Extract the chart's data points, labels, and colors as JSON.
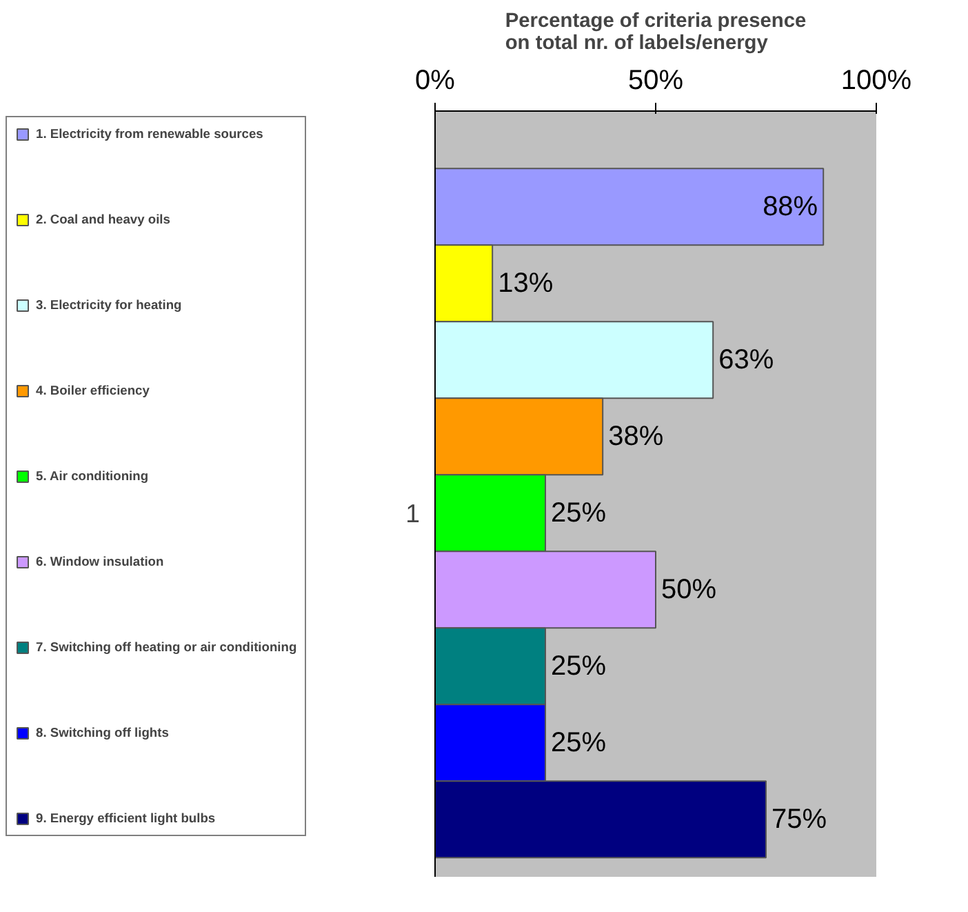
{
  "chart_data": {
    "type": "bar",
    "orientation": "horizontal",
    "title": "Percentage of criteria presence\non total nr. of labels/energy",
    "categories": [
      "1"
    ],
    "series": [
      {
        "name": "1. Electricity from renewable sources",
        "color": "#9999ff",
        "values": [
          88
        ],
        "value_labels": [
          "88%"
        ]
      },
      {
        "name": "2. Coal and heavy oils",
        "color": "#ffff00",
        "values": [
          13
        ],
        "value_labels": [
          "13%"
        ]
      },
      {
        "name": "3. Electricity for heating",
        "color": "#ccffff",
        "values": [
          63
        ],
        "value_labels": [
          "63%"
        ]
      },
      {
        "name": "4. Boiler efficiency",
        "color": "#ff9900",
        "values": [
          38
        ],
        "value_labels": [
          "38%"
        ]
      },
      {
        "name": "5. Air conditioning",
        "color": "#00ff00",
        "values": [
          25
        ],
        "value_labels": [
          "25%"
        ]
      },
      {
        "name": "6. Window insulation",
        "color": "#cc99ff",
        "values": [
          50
        ],
        "value_labels": [
          "50%"
        ]
      },
      {
        "name": "7. Switching off heating or air conditioning",
        "color": "#008080",
        "values": [
          25
        ],
        "value_labels": [
          "25%"
        ]
      },
      {
        "name": "8. Switching off lights",
        "color": "#0000ff",
        "values": [
          25
        ],
        "value_labels": [
          "25%"
        ]
      },
      {
        "name": "9. Energy efficient light bulbs",
        "color": "#000080",
        "values": [
          75
        ],
        "value_labels": [
          "75%"
        ]
      }
    ],
    "xlim": [
      0,
      100
    ],
    "xticks": [
      {
        "value": 0,
        "label": "0%"
      },
      {
        "value": 50,
        "label": "50%"
      },
      {
        "value": 100,
        "label": "100%"
      }
    ],
    "grid": false,
    "legend": "left"
  }
}
